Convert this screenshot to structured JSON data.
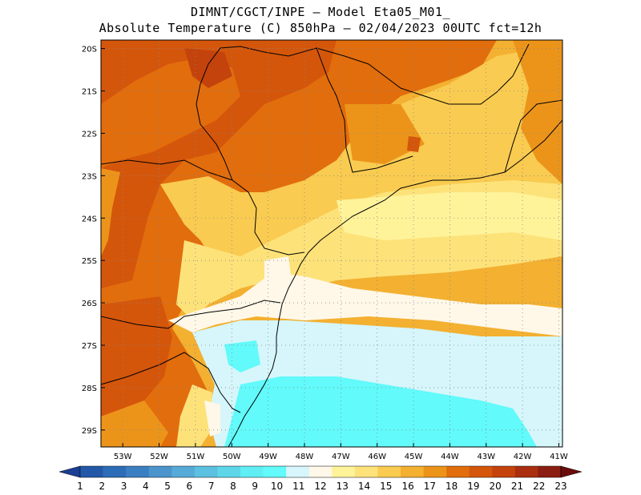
{
  "header": {
    "line1": "DIMNT/CGCT/INPE –  Model Eta05_M01_",
    "line2": "Absolute Temperature (C) 850hPa –  02/04/2023 00UTC fct=12h"
  },
  "map": {
    "lat_ticks": [
      "20S",
      "21S",
      "22S",
      "23S",
      "24S",
      "25S",
      "26S",
      "27S",
      "28S",
      "29S"
    ],
    "lon_ticks": [
      "53W",
      "52W",
      "51W",
      "50W",
      "49W",
      "48W",
      "47W",
      "46W",
      "45W",
      "44W",
      "43W",
      "42W",
      "41W"
    ],
    "lat_range": [
      -29.4,
      -19.8
    ],
    "lon_range": [
      -53.6,
      -40.9
    ],
    "grid": true
  },
  "colorbar": {
    "labels": [
      "1",
      "2",
      "3",
      "4",
      "5",
      "6",
      "7",
      "8",
      "9",
      "10",
      "11",
      "12",
      "13",
      "14",
      "15",
      "16",
      "17",
      "18",
      "19",
      "20",
      "21",
      "22",
      "23"
    ],
    "colors": [
      "#1a3f93",
      "#2358a8",
      "#2d6cb6",
      "#3a7fc1",
      "#4b95cc",
      "#56aad8",
      "#5cc0e0",
      "#5dd6ea",
      "#60eef5",
      "#62fafa",
      "#d6f6fb",
      "#fff8e8",
      "#fff39a",
      "#fde27a",
      "#f9cb50",
      "#f3b031",
      "#ec941a",
      "#e26d0c",
      "#d4560b",
      "#c4430c",
      "#a92f10",
      "#8a1e12",
      "#6a0c0c"
    ]
  }
}
